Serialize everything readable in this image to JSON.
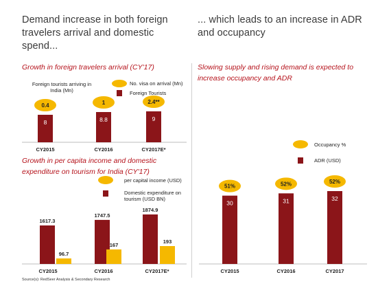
{
  "left_heading": "Demand increase in both foreign travelers arrival and domestic spend...",
  "right_heading": "... which leads to an increase in ADR and occupancy",
  "colors": {
    "maroon": "#8b1519",
    "yellow": "#f5b800",
    "red_text": "#b5121b"
  },
  "chart_data": [
    {
      "type": "bar",
      "subtitle": "Growth in foreign travelers arrival (CY'17)",
      "annotation": "Foreign tourists arriving in India (Mn)",
      "categories": [
        "CY2015",
        "CY2016",
        "CY2017E*"
      ],
      "series": [
        {
          "name": "Foreign Tourists",
          "values": [
            8,
            8.8,
            9
          ],
          "labels": [
            "8",
            "8.8",
            "9"
          ],
          "color": "#8b1519"
        },
        {
          "name": "No. visa on arrival (Mn)",
          "values": [
            0.4,
            1,
            2.4
          ],
          "labels": [
            "0.4",
            "1",
            "2.4**"
          ],
          "color": "#f5b800",
          "marker": "ellipse"
        }
      ]
    },
    {
      "type": "bar",
      "subtitle": "Growth in per capita income and domestic expenditure on tourism for India (CY'17)",
      "categories": [
        "CY2015",
        "CY2016",
        "CY2017E*"
      ],
      "series": [
        {
          "name": "per capital income (USD)",
          "values": [
            1617.3,
            1747.5,
            1874.9
          ],
          "labels": [
            "1617.3",
            "1747.5",
            "1874.9"
          ],
          "color": "#8b1519"
        },
        {
          "name": "Domestic expenditure on tourism (USD BN)",
          "values": [
            96.7,
            167,
            193
          ],
          "labels": [
            "96.7",
            "167",
            "193"
          ],
          "color": "#f5b800"
        }
      ]
    },
    {
      "type": "bar",
      "subtitle": "Slowing supply and rising demand is expected to increase occupancy and ADR",
      "categories": [
        "CY2015",
        "CY2016",
        "CY2017"
      ],
      "series": [
        {
          "name": "ADR (USD)",
          "values": [
            30,
            31,
            32
          ],
          "labels": [
            "30",
            "31",
            "32"
          ],
          "color": "#8b1519"
        },
        {
          "name": "Occupancy %",
          "values": [
            51,
            52,
            52
          ],
          "labels": [
            "51%",
            "52%",
            "52%"
          ],
          "color": "#f5b800",
          "marker": "ellipse"
        }
      ]
    }
  ],
  "source": "Source(s): RedSeer Analysis & Secondary Research"
}
